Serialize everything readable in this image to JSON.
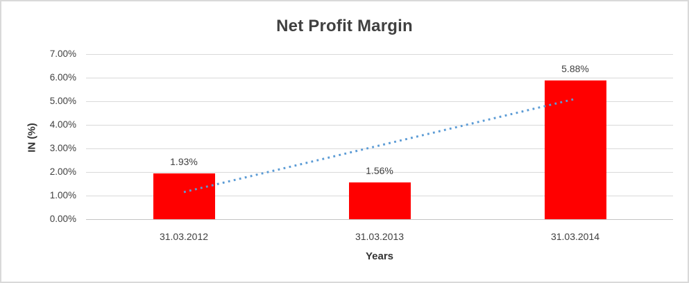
{
  "chart_data": {
    "type": "bar",
    "title": "Net Profit Margin",
    "xlabel": "Years",
    "ylabel": "IN (%)",
    "categories": [
      "31.03.2012",
      "31.03.2013",
      "31.03.2014"
    ],
    "values": [
      1.93,
      1.56,
      5.88
    ],
    "data_labels": [
      "1.93%",
      "1.56%",
      "5.88%"
    ],
    "ylim": [
      0,
      7
    ],
    "ytick_step": 1,
    "ytick_labels": [
      "0.00%",
      "1.00%",
      "2.00%",
      "3.00%",
      "4.00%",
      "5.00%",
      "6.00%",
      "7.00%"
    ],
    "grid": true,
    "legend": "none",
    "bar_color": "#ff0000",
    "trendline": {
      "style": "dotted",
      "color": "#5b9bd5",
      "start_value": 1.15,
      "end_value": 5.1
    }
  },
  "frame": {
    "border_color": "#d9d9d9",
    "background": "#ffffff",
    "gridline_color": "#d9d9d9",
    "axis_line_color": "#c3c3c3",
    "text_color": "#404040"
  }
}
